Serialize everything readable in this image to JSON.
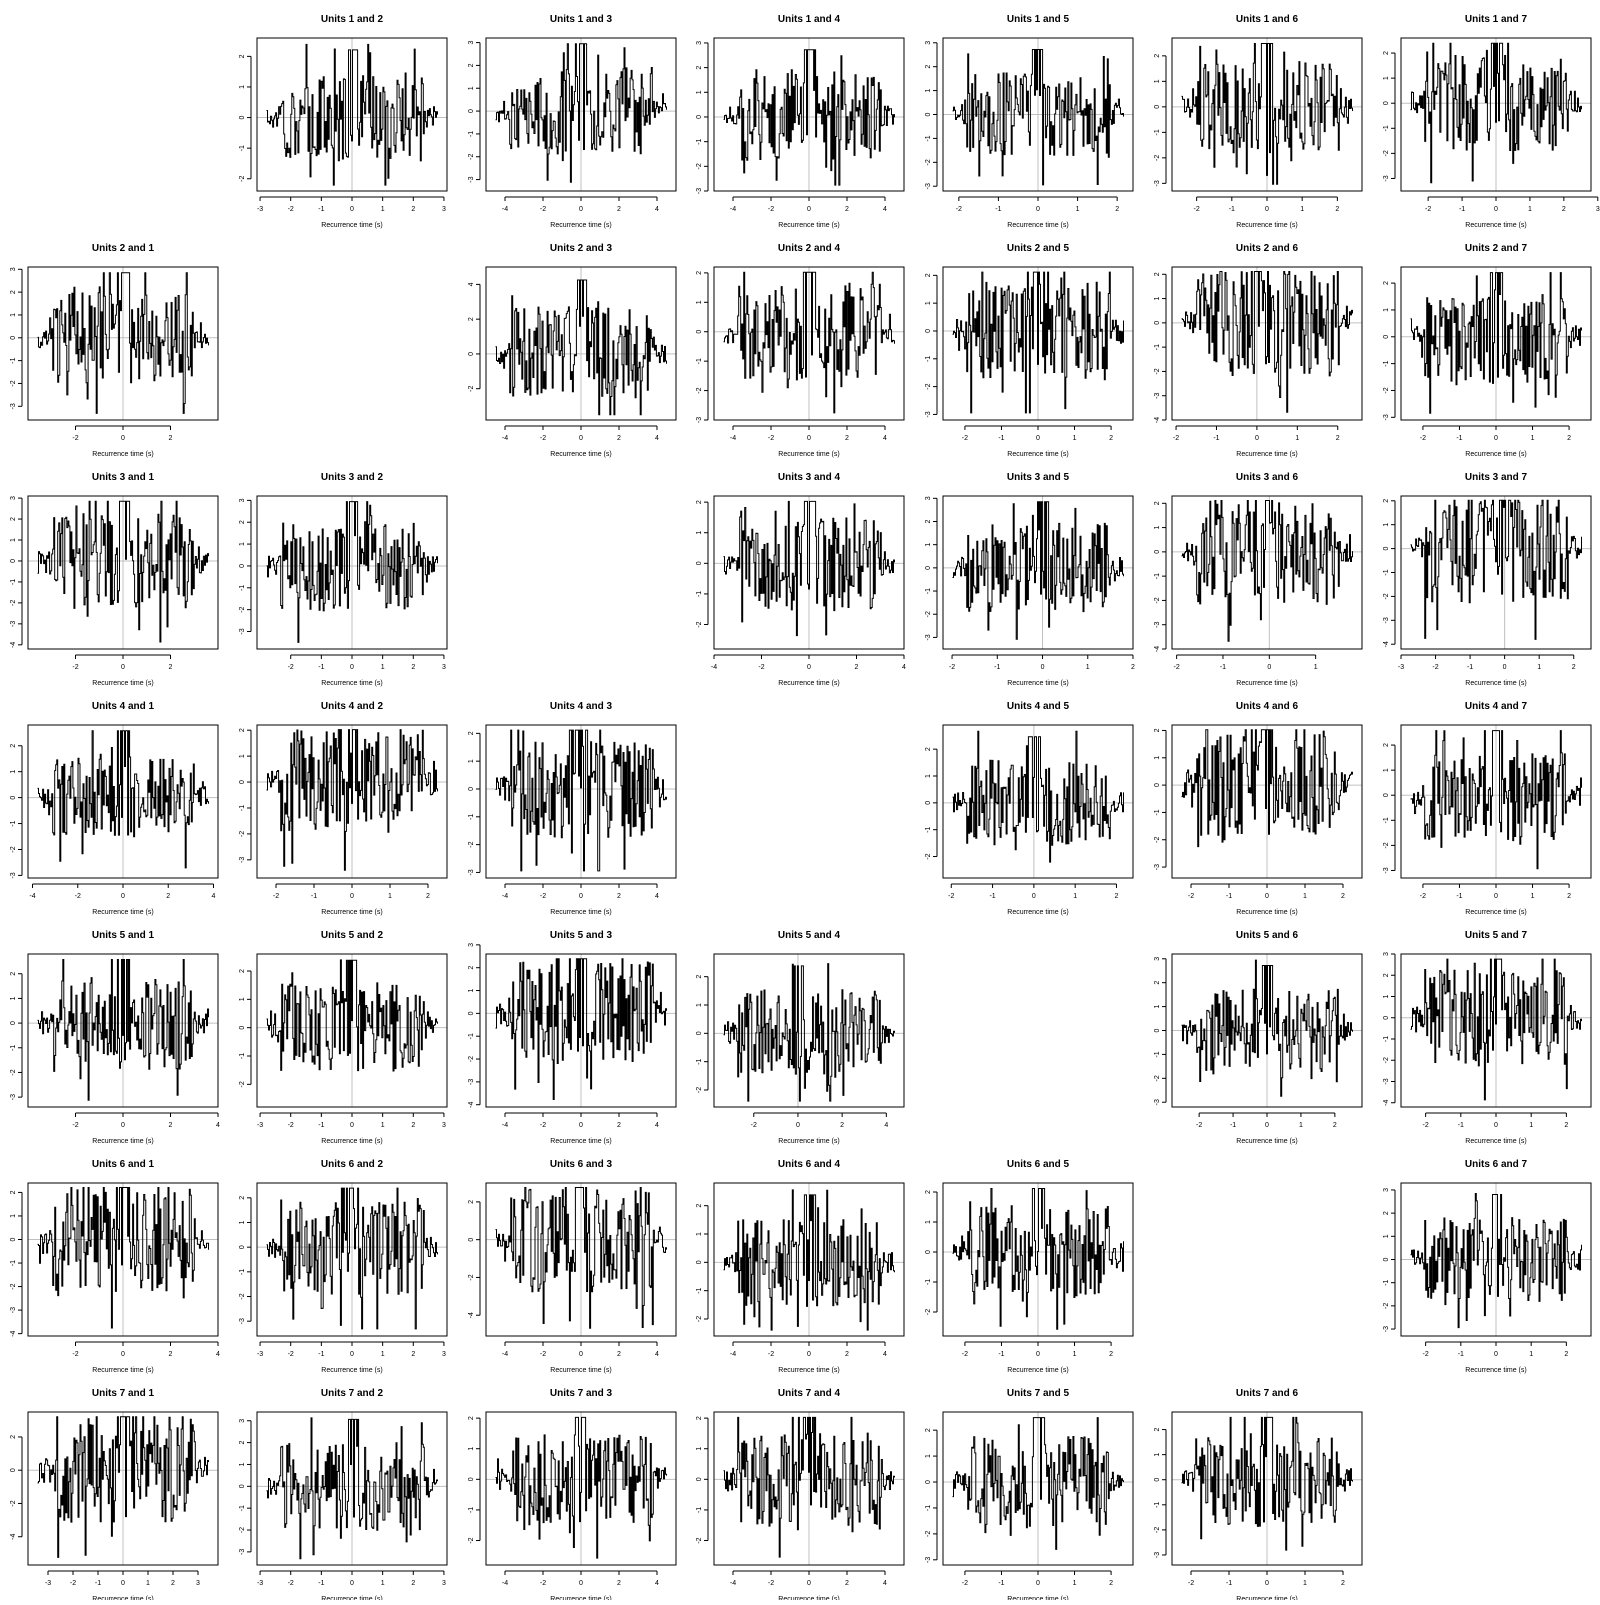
{
  "units": [
    1,
    2,
    3,
    4,
    5,
    6,
    7
  ],
  "panel_title_template": "Units {a} and {b}",
  "xlabel": "Recurrence time (s)",
  "colors": {
    "trace": "#000000",
    "zero_line": "#c0c0c0",
    "frame": "#000000"
  },
  "chart_data": {
    "type": "line",
    "grid": false,
    "panels": [
      {
        "key": "1-2",
        "xticks": [
          -3,
          -2,
          -1,
          0,
          1,
          2,
          3
        ],
        "yticks": [
          -2,
          -1,
          0,
          1,
          2
        ],
        "xlim": [
          -3.1,
          3.1
        ],
        "ylim": [
          -2.4,
          2.6
        ]
      },
      {
        "key": "1-3",
        "xticks": [
          -4,
          -2,
          0,
          2,
          4
        ],
        "yticks": [
          -3,
          -2,
          -1,
          0,
          1,
          2,
          3
        ],
        "xlim": [
          -5.0,
          5.0
        ],
        "ylim": [
          -3.5,
          3.2
        ]
      },
      {
        "key": "1-4",
        "xticks": [
          -4,
          -2,
          0,
          2,
          4
        ],
        "yticks": [
          -3,
          -2,
          -1,
          0,
          1,
          2,
          3
        ],
        "xlim": [
          -5.0,
          5.0
        ],
        "ylim": [
          -3.0,
          3.2
        ]
      },
      {
        "key": "1-5",
        "xticks": [
          -2,
          -1,
          0,
          1,
          2
        ],
        "yticks": [
          -3,
          -2,
          -1,
          0,
          1,
          2,
          3
        ],
        "xlim": [
          -2.4,
          2.4
        ],
        "ylim": [
          -3.2,
          3.2
        ]
      },
      {
        "key": "1-6",
        "xticks": [
          -2,
          -1,
          0,
          1,
          2
        ],
        "yticks": [
          -3,
          -2,
          -1,
          0,
          1,
          2
        ],
        "xlim": [
          -2.7,
          2.7
        ],
        "ylim": [
          -3.3,
          2.7
        ]
      },
      {
        "key": "1-7",
        "xticks": [
          -2,
          -1,
          0,
          1,
          2,
          3
        ],
        "yticks": [
          -3,
          -2,
          -1,
          0,
          1,
          2
        ],
        "xlim": [
          -2.8,
          2.8
        ],
        "ylim": [
          -3.5,
          2.6
        ]
      },
      {
        "key": "2-1",
        "xticks": [
          -2,
          0,
          2
        ],
        "yticks": [
          -3,
          -2,
          -1,
          0,
          1,
          2,
          3
        ],
        "xlim": [
          -4.0,
          4.0
        ],
        "ylim": [
          -3.6,
          3.1
        ]
      },
      {
        "key": "2-3",
        "xticks": [
          -4,
          -2,
          0,
          2,
          4
        ],
        "yticks": [
          -2,
          0,
          2,
          4
        ],
        "xlim": [
          -5.0,
          5.0
        ],
        "ylim": [
          -3.8,
          5.0
        ]
      },
      {
        "key": "2-4",
        "xticks": [
          -4,
          -2,
          0,
          2,
          4
        ],
        "yticks": [
          -3,
          -2,
          -1,
          0,
          1,
          2
        ],
        "xlim": [
          -5.0,
          5.0
        ],
        "ylim": [
          -3.0,
          2.2
        ]
      },
      {
        "key": "2-5",
        "xticks": [
          -2,
          -1,
          0,
          1,
          2
        ],
        "yticks": [
          -3,
          -2,
          -1,
          0,
          1,
          2
        ],
        "xlim": [
          -2.6,
          2.6
        ],
        "ylim": [
          -3.2,
          2.3
        ]
      },
      {
        "key": "2-6",
        "xticks": [
          -2,
          -1,
          0,
          1,
          2
        ],
        "yticks": [
          -4,
          -3,
          -2,
          -1,
          0,
          1,
          2
        ],
        "xlim": [
          -2.1,
          2.6
        ],
        "ylim": [
          -4.0,
          2.3
        ]
      },
      {
        "key": "2-7",
        "xticks": [
          -2,
          -1,
          0,
          1,
          2
        ],
        "yticks": [
          -3,
          -2,
          -1,
          0,
          1,
          2
        ],
        "xlim": [
          -2.6,
          2.6
        ],
        "ylim": [
          -3.1,
          2.6
        ]
      },
      {
        "key": "3-1",
        "xticks": [
          -2,
          0,
          2
        ],
        "yticks": [
          -4,
          -3,
          -2,
          -1,
          0,
          1,
          2,
          3
        ],
        "xlim": [
          -4.0,
          4.0
        ],
        "ylim": [
          -4.2,
          3.1
        ]
      },
      {
        "key": "3-2",
        "xticks": [
          -2,
          -1,
          0,
          1,
          2,
          3
        ],
        "yticks": [
          -3,
          -2,
          -1,
          0,
          1,
          2,
          3
        ],
        "xlim": [
          -3.1,
          3.1
        ],
        "ylim": [
          -3.8,
          3.2
        ]
      },
      {
        "key": "3-4",
        "xticks": [
          -4,
          -2,
          0,
          2,
          4
        ],
        "yticks": [
          -2,
          -1,
          0,
          1,
          2
        ],
        "xlim": [
          -4.0,
          4.0
        ],
        "ylim": [
          -2.8,
          2.2
        ]
      },
      {
        "key": "3-5",
        "xticks": [
          -2,
          -1,
          0,
          1,
          2
        ],
        "yticks": [
          -3,
          -2,
          -1,
          0,
          1,
          2,
          3
        ],
        "xlim": [
          -2.2,
          2.0
        ],
        "ylim": [
          -3.5,
          3.1
        ]
      },
      {
        "key": "3-6",
        "xticks": [
          -2,
          -1,
          0,
          1
        ],
        "yticks": [
          -4,
          -3,
          -2,
          -1,
          0,
          1,
          2
        ],
        "xlim": [
          -2.1,
          2.0
        ],
        "ylim": [
          -4.0,
          2.3
        ]
      },
      {
        "key": "3-7",
        "xticks": [
          -3,
          -2,
          -1,
          0,
          1,
          2
        ],
        "yticks": [
          -4,
          -3,
          -2,
          -1,
          0,
          1,
          2
        ],
        "xlim": [
          -3.0,
          2.5
        ],
        "ylim": [
          -4.2,
          2.2
        ]
      },
      {
        "key": "4-1",
        "xticks": [
          -4,
          -2,
          0,
          2,
          4
        ],
        "yticks": [
          -3,
          -2,
          -1,
          0,
          1,
          2
        ],
        "xlim": [
          -4.2,
          4.2
        ],
        "ylim": [
          -3.1,
          2.8
        ]
      },
      {
        "key": "4-2",
        "xticks": [
          -2,
          -1,
          0,
          1,
          2
        ],
        "yticks": [
          -3,
          -2,
          -1,
          0,
          1,
          2
        ],
        "xlim": [
          -2.5,
          2.5
        ],
        "ylim": [
          -3.7,
          2.2
        ]
      },
      {
        "key": "4-3",
        "xticks": [
          -4,
          -2,
          0,
          2,
          4
        ],
        "yticks": [
          -3,
          -2,
          -1,
          0,
          1,
          2
        ],
        "xlim": [
          -5.0,
          5.0
        ],
        "ylim": [
          -3.2,
          2.3
        ]
      },
      {
        "key": "4-5",
        "xticks": [
          -2,
          -1,
          0,
          1,
          2
        ],
        "yticks": [
          -2,
          -1,
          0,
          1,
          2
        ],
        "xlim": [
          -2.2,
          2.4
        ],
        "ylim": [
          -2.8,
          2.9
        ]
      },
      {
        "key": "4-6",
        "xticks": [
          -2,
          -1,
          0,
          1,
          2
        ],
        "yticks": [
          -3,
          -2,
          -1,
          0,
          1,
          2
        ],
        "xlim": [
          -2.5,
          2.5
        ],
        "ylim": [
          -3.4,
          2.2
        ]
      },
      {
        "key": "4-7",
        "xticks": [
          -2,
          -1,
          0,
          1,
          2
        ],
        "yticks": [
          -3,
          -2,
          -1,
          0,
          1,
          2
        ],
        "xlim": [
          -2.6,
          2.6
        ],
        "ylim": [
          -3.3,
          2.8
        ]
      },
      {
        "key": "5-1",
        "xticks": [
          -2,
          0,
          2,
          4
        ],
        "yticks": [
          -3,
          -2,
          -1,
          0,
          1,
          2
        ],
        "xlim": [
          -4.0,
          4.0
        ],
        "ylim": [
          -3.4,
          2.8
        ]
      },
      {
        "key": "5-2",
        "xticks": [
          -3,
          -2,
          -1,
          0,
          1,
          2,
          3
        ],
        "yticks": [
          -2,
          -1,
          0,
          1,
          2
        ],
        "xlim": [
          -3.1,
          3.1
        ],
        "ylim": [
          -2.8,
          2.6
        ]
      },
      {
        "key": "5-3",
        "xticks": [
          -4,
          -2,
          0,
          2,
          4
        ],
        "yticks": [
          -4,
          -3,
          -2,
          -1,
          0,
          1,
          2,
          3
        ],
        "xlim": [
          -5.0,
          5.0
        ],
        "ylim": [
          -4.1,
          2.6
        ]
      },
      {
        "key": "5-4",
        "xticks": [
          -2,
          0,
          2,
          4
        ],
        "yticks": [
          -2,
          -1,
          0,
          1,
          2
        ],
        "xlim": [
          -3.8,
          4.8
        ],
        "ylim": [
          -2.6,
          2.8
        ]
      },
      {
        "key": "5-6",
        "xticks": [
          -2,
          -1,
          0,
          1,
          2
        ],
        "yticks": [
          -3,
          -2,
          -1,
          0,
          1,
          2,
          3
        ],
        "xlim": [
          -2.8,
          2.8
        ],
        "ylim": [
          -3.2,
          3.2
        ]
      },
      {
        "key": "5-7",
        "xticks": [
          -2,
          -1,
          0,
          1,
          2
        ],
        "yticks": [
          -4,
          -3,
          -2,
          -1,
          0,
          1,
          2,
          3
        ],
        "xlim": [
          -2.7,
          2.7
        ],
        "ylim": [
          -4.2,
          3.0
        ]
      },
      {
        "key": "6-1",
        "xticks": [
          -2,
          0,
          2,
          4
        ],
        "yticks": [
          -4,
          -3,
          -2,
          -1,
          0,
          1,
          2
        ],
        "xlim": [
          -4.0,
          4.0
        ],
        "ylim": [
          -4.1,
          2.4
        ]
      },
      {
        "key": "6-2",
        "xticks": [
          -3,
          -2,
          -1,
          0,
          1,
          2,
          3
        ],
        "yticks": [
          -3,
          -2,
          -1,
          0,
          1,
          2
        ],
        "xlim": [
          -3.1,
          3.1
        ],
        "ylim": [
          -3.6,
          2.6
        ]
      },
      {
        "key": "6-3",
        "xticks": [
          -4,
          -2,
          0,
          2,
          4
        ],
        "yticks": [
          -4,
          -2,
          0,
          2
        ],
        "xlim": [
          -5.0,
          5.0
        ],
        "ylim": [
          -5.1,
          3.0
        ]
      },
      {
        "key": "6-4",
        "xticks": [
          -4,
          -2,
          0,
          2,
          4
        ],
        "yticks": [
          -2,
          -1,
          0,
          1,
          2
        ],
        "xlim": [
          -5.0,
          5.0
        ],
        "ylim": [
          -2.6,
          2.8
        ]
      },
      {
        "key": "6-5",
        "xticks": [
          -2,
          -1,
          0,
          1,
          2
        ],
        "yticks": [
          -2,
          -1,
          0,
          1,
          2
        ],
        "xlim": [
          -2.6,
          2.6
        ],
        "ylim": [
          -2.8,
          2.3
        ]
      },
      {
        "key": "6-7",
        "xticks": [
          -2,
          -1,
          0,
          1,
          2
        ],
        "yticks": [
          -3,
          -2,
          -1,
          0,
          1,
          2,
          3
        ],
        "xlim": [
          -2.7,
          2.7
        ],
        "ylim": [
          -3.3,
          3.3
        ]
      },
      {
        "key": "7-1",
        "xticks": [
          -3,
          -2,
          -1,
          0,
          1,
          2,
          3
        ],
        "yticks": [
          -4,
          -2,
          0,
          2
        ],
        "xlim": [
          -3.8,
          3.8
        ],
        "ylim": [
          -5.7,
          3.5
        ]
      },
      {
        "key": "7-2",
        "xticks": [
          -3,
          -2,
          -1,
          0,
          1,
          2,
          3
        ],
        "yticks": [
          -3,
          -2,
          -1,
          0,
          1,
          2,
          3
        ],
        "xlim": [
          -3.1,
          3.1
        ],
        "ylim": [
          -3.6,
          3.4
        ]
      },
      {
        "key": "7-3",
        "xticks": [
          -4,
          -2,
          0,
          2,
          4
        ],
        "yticks": [
          -2,
          -1,
          0,
          1,
          2
        ],
        "xlim": [
          -5.0,
          5.0
        ],
        "ylim": [
          -2.8,
          2.2
        ]
      },
      {
        "key": "7-4",
        "xticks": [
          -4,
          -2,
          0,
          2,
          4
        ],
        "yticks": [
          -2,
          -1,
          0,
          1,
          2
        ],
        "xlim": [
          -5.0,
          5.0
        ],
        "ylim": [
          -2.8,
          2.2
        ]
      },
      {
        "key": "7-5",
        "xticks": [
          -2,
          -1,
          0,
          1,
          2
        ],
        "yticks": [
          -3,
          -2,
          -1,
          0,
          1,
          2
        ],
        "xlim": [
          -2.6,
          2.6
        ],
        "ylim": [
          -3.2,
          2.7
        ]
      },
      {
        "key": "7-6",
        "xticks": [
          -2,
          -1,
          0,
          1,
          2
        ],
        "yticks": [
          -3,
          -2,
          -1,
          0,
          1,
          2
        ],
        "xlim": [
          -2.5,
          2.5
        ],
        "ylim": [
          -3.4,
          2.7
        ]
      }
    ]
  }
}
